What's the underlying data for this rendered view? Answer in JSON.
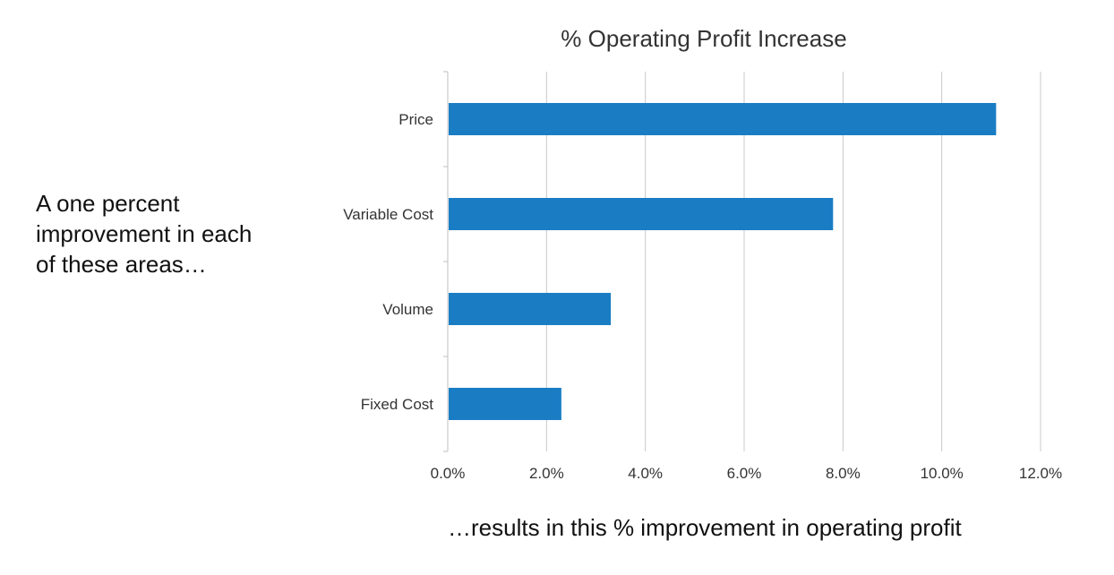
{
  "side_note": "A one percent\nimprovement in each\nof these areas…",
  "x_caption": "…results in this % improvement in operating profit",
  "colors": {
    "bar": "#1A7DC4",
    "grid": "#C8C8C8",
    "axis": "#BFBFBF"
  },
  "chart_data": {
    "type": "bar",
    "orientation": "horizontal",
    "title": "% Operating Profit Increase",
    "categories": [
      "Price",
      "Variable Cost",
      "Volume",
      "Fixed Cost"
    ],
    "values": [
      11.1,
      7.8,
      3.3,
      2.3
    ],
    "xlabel": "…results in this % improvement in operating profit",
    "ylabel": "",
    "xlim": [
      0,
      12
    ],
    "xticks": [
      0,
      2,
      4,
      6,
      8,
      10,
      12
    ],
    "tick_labels": [
      "0.0%",
      "2.0%",
      "4.0%",
      "6.0%",
      "8.0%",
      "10.0%",
      "12.0%"
    ],
    "grid": true,
    "legend": "none"
  }
}
